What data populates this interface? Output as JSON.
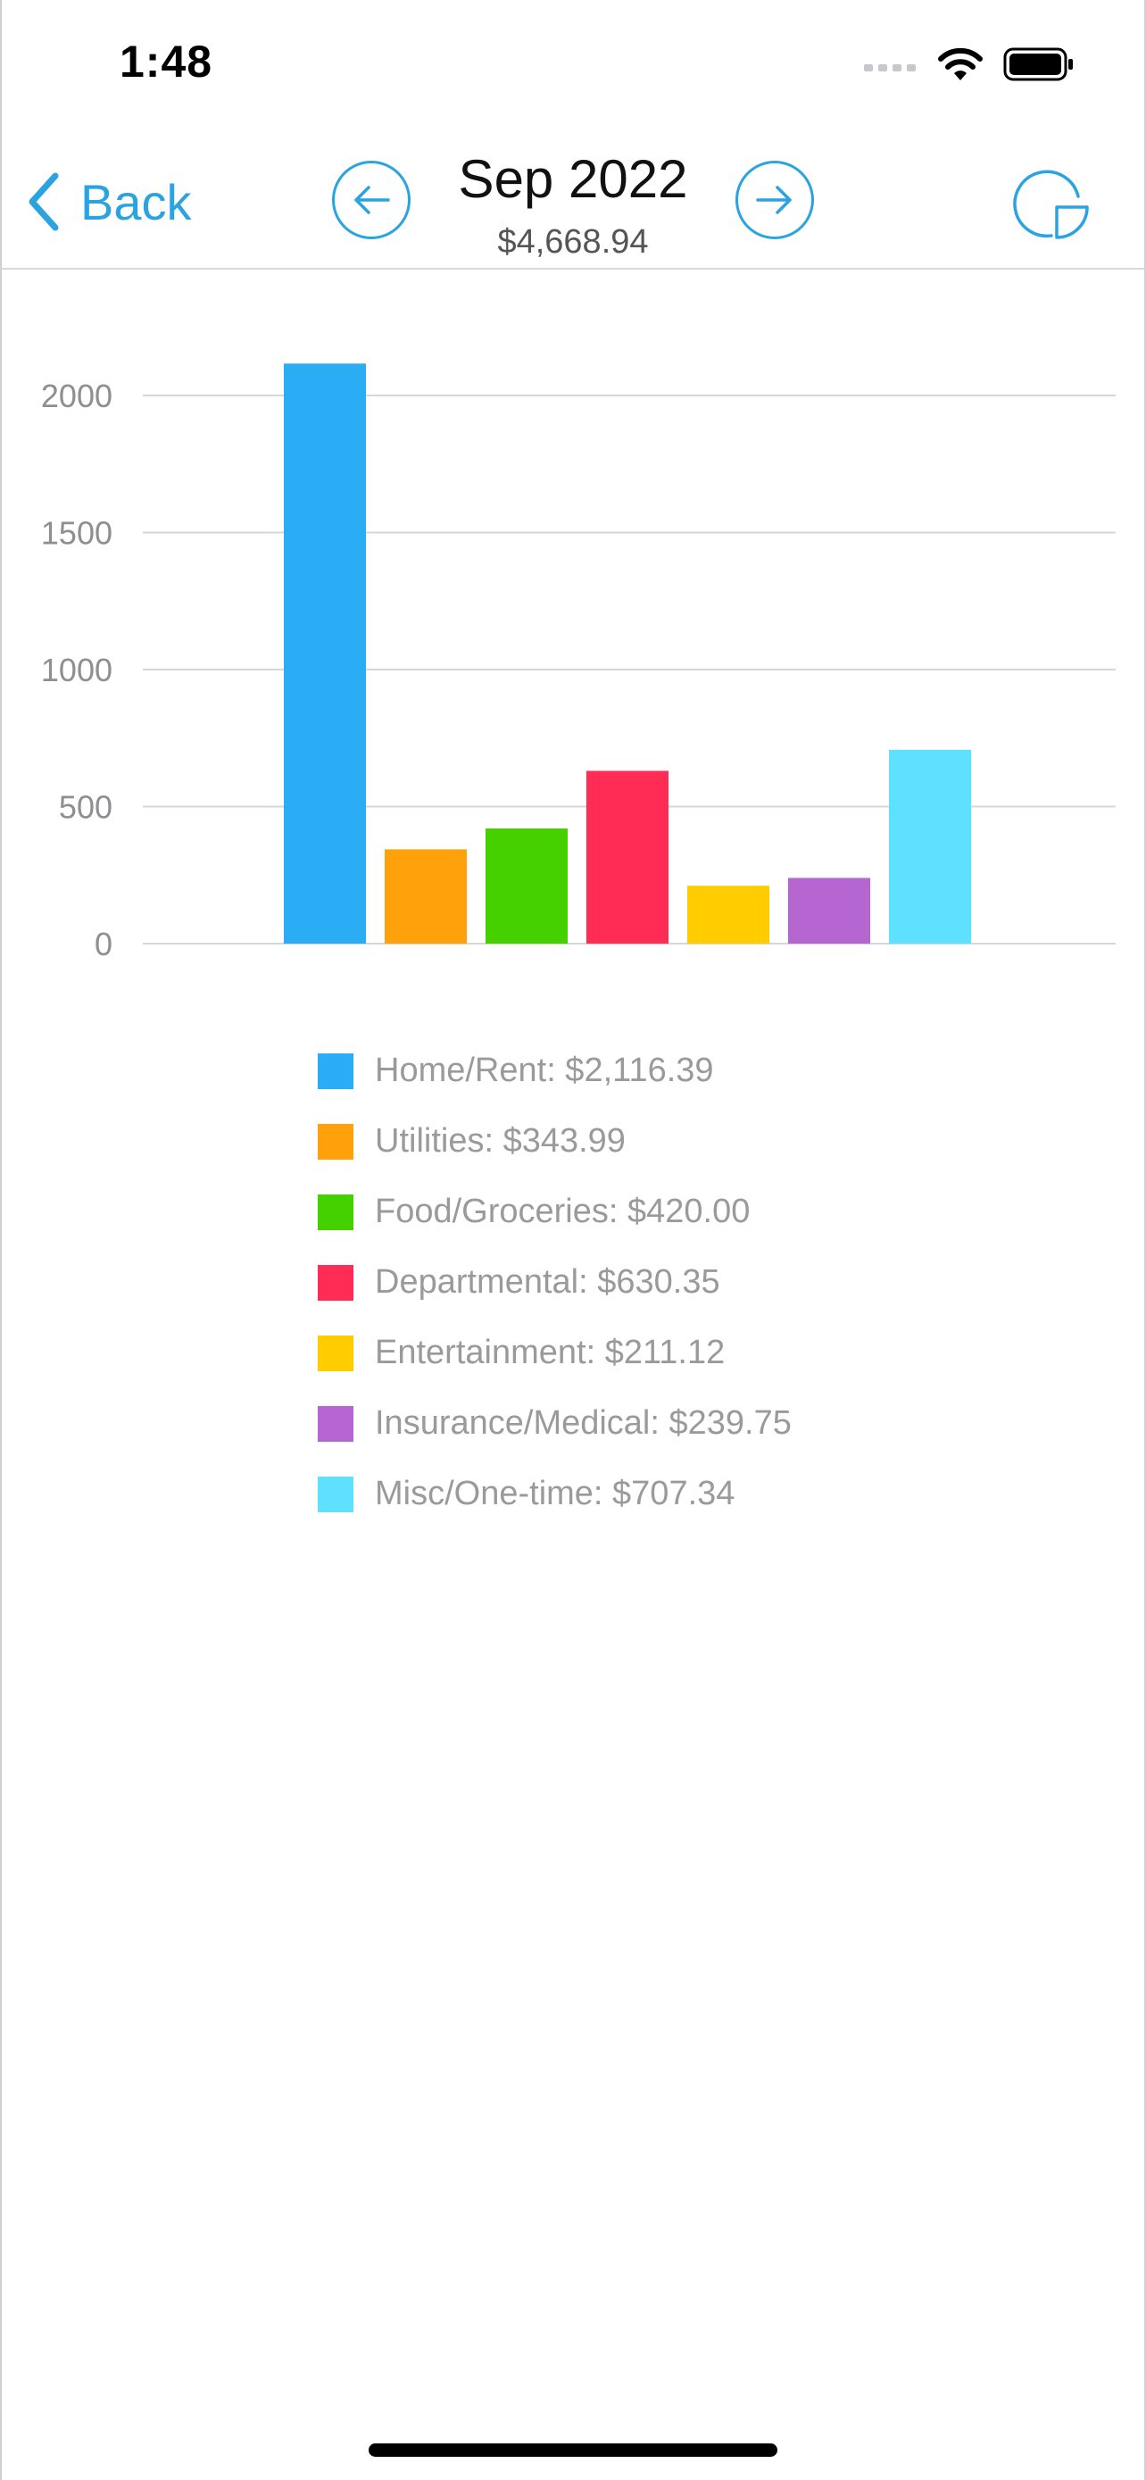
{
  "status_bar": {
    "time": "1:48",
    "icons": [
      "cellular-signal-icon",
      "wifi-icon",
      "battery-icon"
    ]
  },
  "nav": {
    "back_label": "Back",
    "title": "Sep 2022",
    "subtitle": "$4,668.94",
    "prev_icon": "arrow-left-circle-icon",
    "next_icon": "arrow-right-circle-icon",
    "chart_type_icon": "pie-chart-icon",
    "accent_color": "#2aa3e0"
  },
  "chart_data": {
    "type": "bar",
    "categories": [
      "Home/Rent",
      "Utilities",
      "Food/Groceries",
      "Departmental",
      "Entertainment",
      "Insurance/Medical",
      "Misc/One-time"
    ],
    "values": [
      2116.39,
      343.99,
      420.0,
      630.35,
      211.12,
      239.75,
      707.34
    ],
    "colors": [
      "#2aadf5",
      "#ffa10a",
      "#45d000",
      "#ff2d55",
      "#ffcc00",
      "#b566d0",
      "#5ee0ff"
    ],
    "yticks": [
      "0",
      "500",
      "1000",
      "1500",
      "2000"
    ],
    "ylim": [
      0,
      2250
    ],
    "grid": true,
    "legend_position": "bottom"
  },
  "legend": {
    "items": [
      {
        "label": "Home/Rent: $2,116.39",
        "color": "#2aadf5"
      },
      {
        "label": "Utilities: $343.99",
        "color": "#ffa10a"
      },
      {
        "label": "Food/Groceries: $420.00",
        "color": "#45d000"
      },
      {
        "label": "Departmental: $630.35",
        "color": "#ff2d55"
      },
      {
        "label": "Entertainment: $211.12",
        "color": "#ffcc00"
      },
      {
        "label": "Insurance/Medical: $239.75",
        "color": "#b566d0"
      },
      {
        "label": "Misc/One-time: $707.34",
        "color": "#5ee0ff"
      }
    ]
  }
}
